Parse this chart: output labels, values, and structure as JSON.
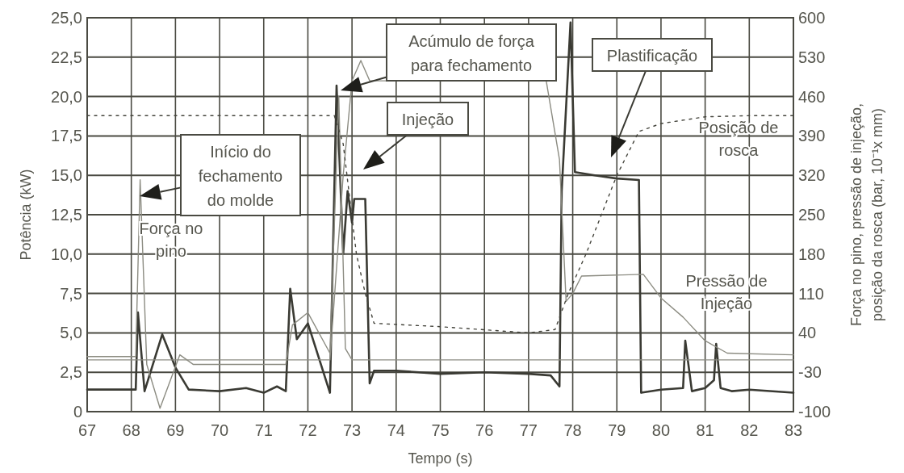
{
  "chart_data": {
    "type": "line",
    "xlabel": "Tempo (s)",
    "ylabel": "Potência (kW)",
    "y2label": "Força no pino, pressão de injeção,\nposição da rosca (bar, 10⁻¹x mm)",
    "xlim": [
      67,
      83
    ],
    "xticks": [
      67,
      68,
      69,
      70,
      71,
      72,
      73,
      74,
      75,
      76,
      77,
      78,
      79,
      80,
      81,
      82,
      83
    ],
    "ylim": [
      0,
      25
    ],
    "yticks": [
      0,
      {
        "value": 2.5,
        "label": "2,5"
      },
      {
        "value": 5,
        "label": "5,0"
      },
      {
        "value": 7.5,
        "label": "7,5"
      },
      {
        "value": 10,
        "label": "10,0"
      },
      {
        "value": 12.5,
        "label": "12,5"
      },
      {
        "value": 15,
        "label": "15,0"
      },
      {
        "value": 17.5,
        "label": "17,5"
      },
      {
        "value": 20,
        "label": "20,0"
      },
      {
        "value": 22.5,
        "label": "22,5"
      },
      {
        "value": 25,
        "label": "25,0"
      }
    ],
    "y2lim": [
      -100,
      600
    ],
    "y2ticks": [
      -100,
      -30,
      40,
      110,
      180,
      250,
      320,
      390,
      460,
      530,
      600
    ],
    "grid": true,
    "marker": "none",
    "series": [
      {
        "color": "#3a3a33",
        "line_style": "solid",
        "x": [
          67,
          68.1,
          68.15,
          68.3,
          68.7,
          69.0,
          69.3,
          70.0,
          70.6,
          71.0,
          71.3,
          71.5,
          71.6,
          71.75,
          72.0,
          72.5,
          72.65,
          72.8,
          72.9,
          73.0,
          73.05,
          73.3,
          73.4,
          73.5,
          74,
          75,
          76,
          77,
          77.5,
          77.7,
          77.75,
          77.95,
          78.05,
          78.5,
          79,
          79.5,
          79.55,
          80,
          80.5,
          80.55,
          80.7,
          81.0,
          81.2,
          81.25,
          81.35,
          81.6,
          82,
          83
        ],
        "values": [
          1.4,
          1.4,
          6.3,
          1.3,
          4.9,
          2.8,
          1.4,
          1.3,
          1.5,
          1.2,
          1.6,
          1.3,
          7.8,
          4.6,
          5.6,
          1.2,
          20.7,
          10,
          14,
          12,
          13.5,
          13.5,
          1.8,
          2.6,
          2.6,
          2.4,
          2.5,
          2.4,
          2.3,
          1.6,
          14,
          24.7,
          15.2,
          15,
          14.8,
          14.7,
          1.2,
          1.4,
          1.5,
          4.5,
          1.3,
          1.5,
          2.0,
          4.3,
          1.5,
          1.3,
          1.4,
          1.2
        ]
      },
      {
        "name": "Força no pino",
        "axis": "y2",
        "color": "#8c8c82",
        "line_style": "solid",
        "x": [
          67,
          68.1,
          68.2,
          68.35,
          68.65,
          69.1,
          69.4,
          71.5,
          71.65,
          72.0,
          72.5,
          72.7,
          72.85,
          73.0,
          83
        ],
        "values": [
          -2,
          -2,
          312,
          -16,
          -94,
          1,
          -16,
          -16,
          54,
          76,
          4,
          460,
          12,
          -8,
          -8
        ]
      },
      {
        "name": "Pressão de Injeção",
        "axis": "y2",
        "color": "#8c8c82",
        "line_style": "solid",
        "x": [
          67,
          72.5,
          72.8,
          73.0,
          73.2,
          73.4,
          77.4,
          77.7,
          77.85,
          78.0,
          78.2,
          79.6,
          80.0,
          80.5,
          81.0,
          81.5,
          83
        ],
        "values": [
          -8,
          -8,
          320,
          488,
          524,
          488,
          488,
          348,
          96,
          110,
          141,
          144,
          102,
          68,
          26,
          4,
          1
        ]
      },
      {
        "name": "Posição de rosca",
        "axis": "y2",
        "color": "#45453d",
        "line_style": "dotted",
        "x": [
          67,
          72.6,
          72.8,
          73.1,
          73.3,
          73.5,
          75,
          77,
          77.6,
          77.9,
          78.3,
          79.0,
          79.5,
          80,
          81,
          82,
          83
        ],
        "values": [
          426,
          426,
          376,
          180,
          110,
          57,
          51,
          40,
          46,
          110,
          180,
          320,
          398,
          412,
          424,
          426,
          426
        ]
      }
    ],
    "annotations": [
      "Início do fechamento do molde",
      "Acúmulo de força para fechamento",
      "Injeção",
      "Plastificação"
    ]
  }
}
